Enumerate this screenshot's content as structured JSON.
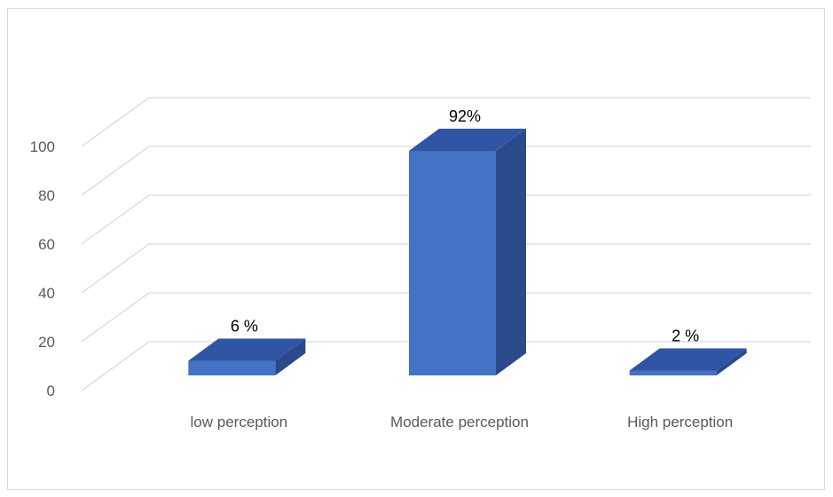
{
  "chart_data": {
    "type": "bar",
    "style": "3d-column",
    "categories": [
      "low perception",
      "Moderate perception",
      "High perception"
    ],
    "values": [
      6,
      92,
      2
    ],
    "data_labels": [
      "6 %",
      "92%",
      "2 %"
    ],
    "ylim": [
      0,
      100
    ],
    "yticks": [
      0,
      20,
      40,
      60,
      80,
      100
    ],
    "title": "",
    "xlabel": "",
    "ylabel": "",
    "grid": true,
    "legend": "none",
    "colors": {
      "bar_front": "#4472c4",
      "bar_top": "#2f55a4",
      "bar_side": "#2a4a8c",
      "grid": "#d9d9d9",
      "axis_text": "#595959",
      "label_text": "#000000"
    }
  }
}
